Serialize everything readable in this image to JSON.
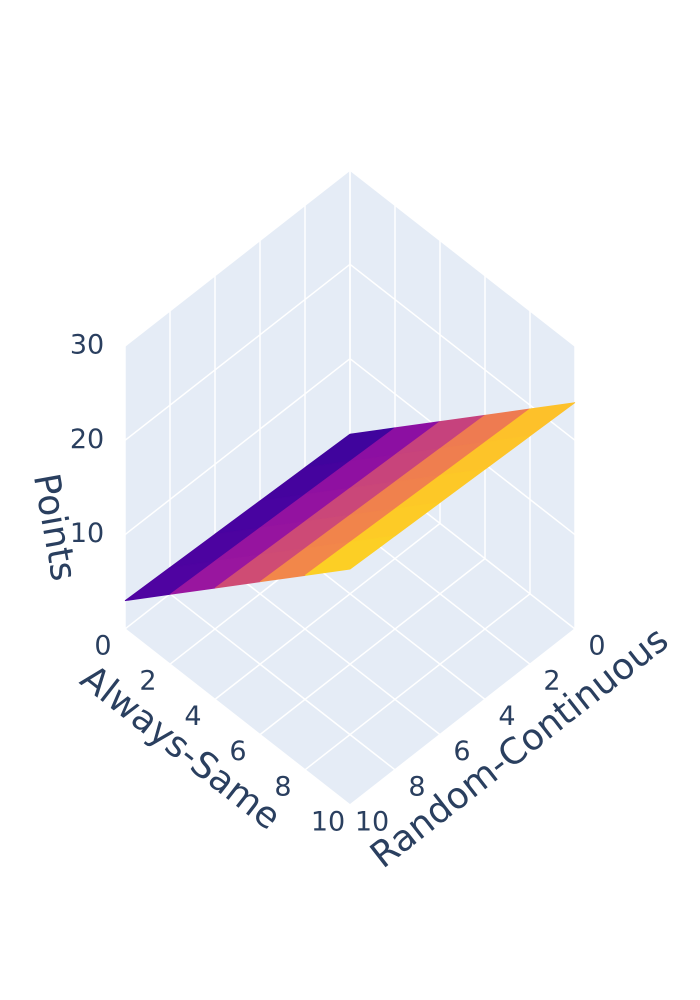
{
  "chart_data": {
    "type": "surface",
    "x_label": "Always-Same",
    "y_label": "Random-Continuous",
    "z_label": "Points",
    "x": [
      0,
      2,
      4,
      6,
      8,
      10
    ],
    "y": [
      0,
      2,
      4,
      6,
      8,
      10
    ],
    "z": [
      [
        2,
        6.4,
        10.8,
        15.2,
        19.6,
        24
      ],
      [
        2.2,
        6.6,
        11,
        15.4,
        19.8,
        24.2
      ],
      [
        2.4,
        6.8,
        11.2,
        15.6,
        20,
        24.4
      ],
      [
        2.6,
        7,
        11.4,
        15.8,
        20.2,
        24.6
      ],
      [
        2.8,
        7.2,
        11.6,
        16,
        20.4,
        24.8
      ],
      [
        3,
        7.4,
        11.8,
        16.2,
        20.6,
        25
      ]
    ],
    "xlim": [
      0,
      10
    ],
    "xticks": [
      0,
      2,
      4,
      6,
      8,
      10
    ],
    "ylim": [
      0,
      10
    ],
    "yticks": [
      0,
      2,
      4,
      6,
      8,
      10
    ],
    "zlim": [
      0,
      30
    ],
    "zticks": [
      10,
      20,
      30
    ],
    "colorscale": "Plasma",
    "grid": true
  }
}
